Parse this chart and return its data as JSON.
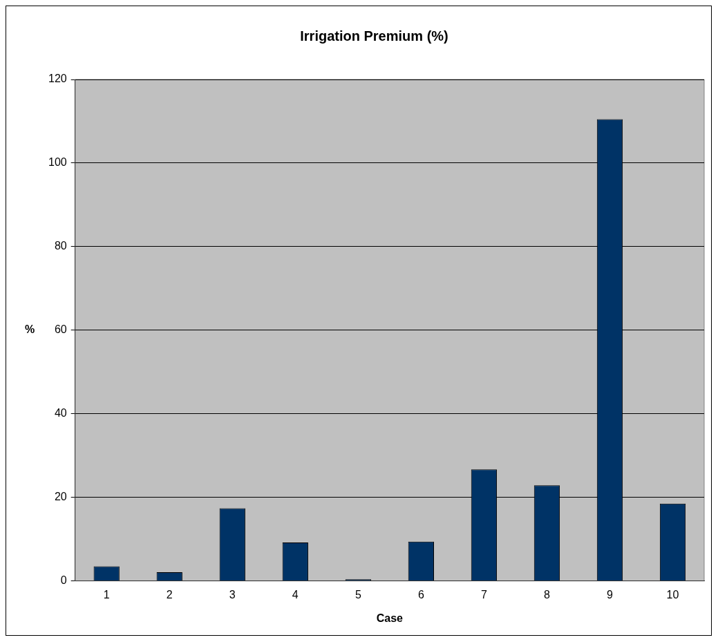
{
  "chart_data": {
    "type": "bar",
    "title": "Irrigation Premium (%)",
    "xlabel": "Case",
    "ylabel": "%",
    "categories": [
      "1",
      "2",
      "3",
      "4",
      "5",
      "6",
      "7",
      "8",
      "9",
      "10"
    ],
    "series": [
      {
        "color": "#003366",
        "values": [
          3.5,
          2.1,
          17.4,
          9.2,
          0.4,
          9.4,
          26.7,
          22.9,
          110.5,
          18.5
        ]
      }
    ],
    "ylim": [
      0,
      120
    ],
    "yticks": [
      0,
      20,
      40,
      60,
      80,
      100,
      120
    ],
    "grid": "y",
    "legend": false
  }
}
